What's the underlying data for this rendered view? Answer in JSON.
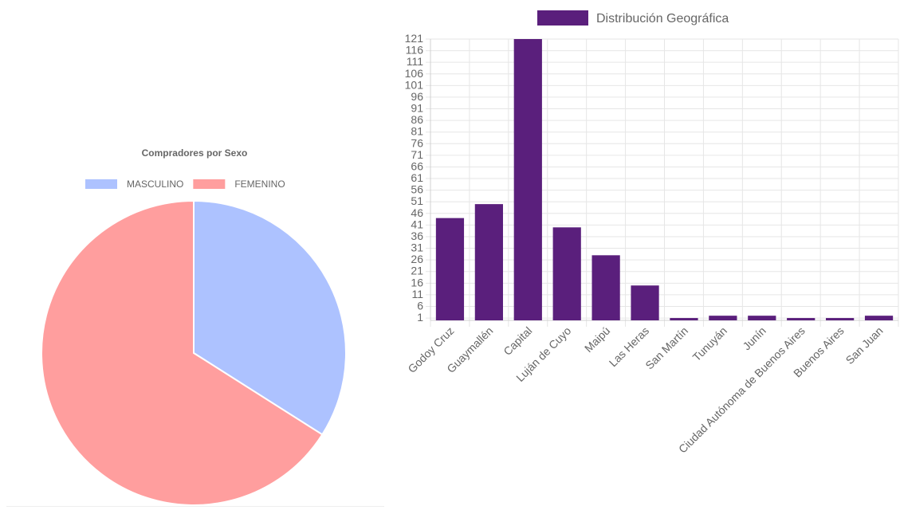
{
  "chart_data": [
    {
      "type": "pie",
      "title": "Compradores por Sexo",
      "legend_position": "top",
      "categories": [
        "MASCULINO",
        "FEMENINO"
      ],
      "values": [
        34,
        66
      ],
      "colors": [
        "#adc2ff",
        "#ff9e9e"
      ]
    },
    {
      "type": "bar",
      "series": [
        {
          "name": "Distribución Geográfica",
          "color": "#5a1f7c",
          "values": [
            44,
            50,
            121,
            40,
            28,
            15,
            1,
            2,
            2,
            1,
            1,
            2
          ]
        }
      ],
      "categories": [
        "Godoy Cruz",
        "Guaymallén",
        "Capital",
        "Luján de Cuyo",
        "Maipú",
        "Las Heras",
        "San Martín",
        "Tunuyán",
        "Junín",
        "Ciudad Autónoma de Buenos Aires",
        "Buenos Aires",
        "San Juan"
      ],
      "yticks": [
        1,
        6,
        11,
        16,
        21,
        26,
        31,
        36,
        41,
        46,
        51,
        56,
        61,
        66,
        71,
        76,
        81,
        86,
        91,
        96,
        101,
        106,
        111,
        116,
        121
      ],
      "ylim": [
        0,
        121
      ],
      "grid": true,
      "legend_position": "top"
    }
  ]
}
